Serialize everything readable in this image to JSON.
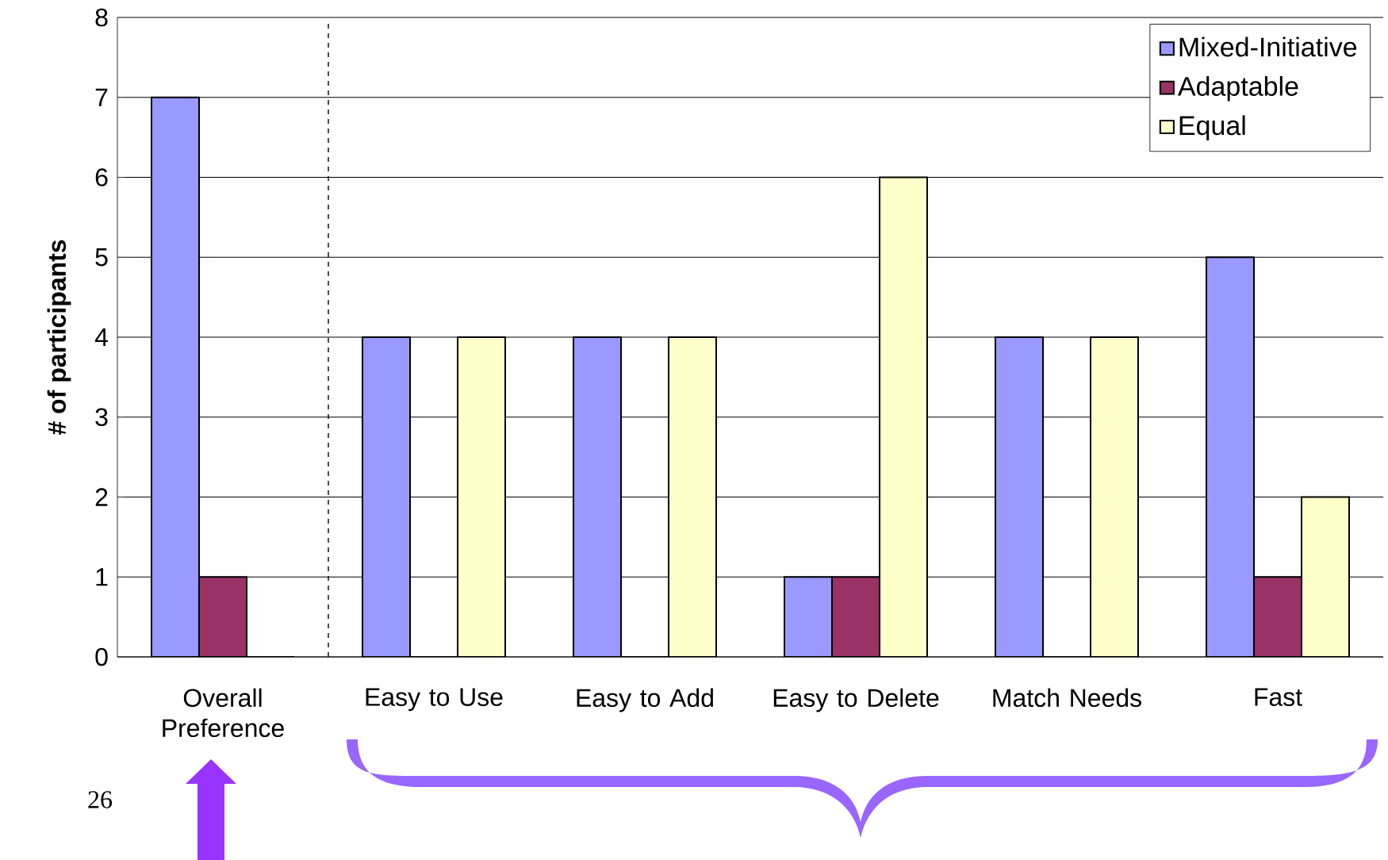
{
  "chart_data": {
    "type": "bar",
    "ylabel": "# of participants",
    "categories": [
      "Overall Preference",
      "Easy to Use",
      "Easy to Add",
      "Easy to Delete",
      "Match Needs",
      "Fast"
    ],
    "series": [
      {
        "name": "Mixed-Initiative",
        "color": "#9999ff",
        "values": [
          7,
          4,
          4,
          1,
          4,
          5
        ]
      },
      {
        "name": "Adaptable",
        "color": "#993366",
        "values": [
          1,
          0,
          0,
          1,
          0,
          1
        ]
      },
      {
        "name": "Equal",
        "color": "#ffffcc",
        "values": [
          0,
          4,
          4,
          6,
          4,
          2
        ]
      }
    ],
    "ylim": [
      0,
      8
    ],
    "yticks": [
      0,
      1,
      2,
      3,
      4,
      5,
      6,
      7,
      8
    ],
    "grid": "y",
    "legend": "top right",
    "annotations": [
      "26"
    ]
  }
}
